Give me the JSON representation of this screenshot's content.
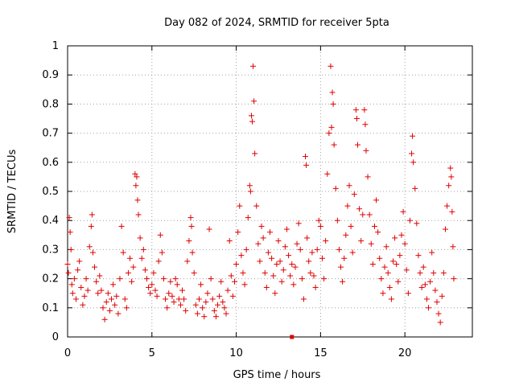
{
  "chart_data": {
    "type": "scatter",
    "title": "Day 082 of 2024, SRMTID for receiver 5pta",
    "xlabel": "GPS time / hours",
    "ylabel": "SRMTID / TECUs",
    "xlim": [
      0,
      24
    ],
    "ylim": [
      0,
      1
    ],
    "xticks": [
      0,
      5,
      10,
      15,
      20
    ],
    "xtick_labels": [
      "0",
      "5",
      "10",
      "15",
      "20"
    ],
    "yticks": [
      0,
      0.1,
      0.2,
      0.3,
      0.4,
      0.5,
      0.6,
      0.7,
      0.8,
      0.9,
      1
    ],
    "ytick_labels": [
      "0",
      "0.1",
      "0.2",
      "0.3",
      "0.4",
      "0.5",
      "0.6",
      "0.7",
      "0.8",
      "0.9",
      "1"
    ],
    "grid": true,
    "marker": "plus",
    "marker_color": "#e00000",
    "series": [
      {
        "name": "SRMTID",
        "points": [
          [
            0.0,
            0.25
          ],
          [
            0.05,
            0.22
          ],
          [
            0.1,
            0.41
          ],
          [
            0.15,
            0.36
          ],
          [
            0.2,
            0.3
          ],
          [
            0.25,
            0.18
          ],
          [
            0.3,
            0.15
          ],
          [
            0.4,
            0.2
          ],
          [
            0.5,
            0.13
          ],
          [
            0.6,
            0.23
          ],
          [
            0.7,
            0.26
          ],
          [
            0.8,
            0.17
          ],
          [
            0.9,
            0.11
          ],
          [
            1.0,
            0.14
          ],
          [
            1.1,
            0.2
          ],
          [
            1.2,
            0.16
          ],
          [
            1.3,
            0.31
          ],
          [
            1.4,
            0.38
          ],
          [
            1.45,
            0.42
          ],
          [
            1.5,
            0.29
          ],
          [
            1.6,
            0.24
          ],
          [
            1.7,
            0.19
          ],
          [
            1.8,
            0.15
          ],
          [
            1.9,
            0.21
          ],
          [
            2.0,
            0.16
          ],
          [
            2.1,
            0.1
          ],
          [
            2.2,
            0.06
          ],
          [
            2.3,
            0.12
          ],
          [
            2.4,
            0.15
          ],
          [
            2.5,
            0.09
          ],
          [
            2.6,
            0.13
          ],
          [
            2.7,
            0.18
          ],
          [
            2.8,
            0.11
          ],
          [
            2.9,
            0.14
          ],
          [
            3.0,
            0.08
          ],
          [
            3.1,
            0.2
          ],
          [
            3.2,
            0.38
          ],
          [
            3.3,
            0.29
          ],
          [
            3.4,
            0.13
          ],
          [
            3.5,
            0.1
          ],
          [
            3.6,
            0.22
          ],
          [
            3.7,
            0.27
          ],
          [
            3.8,
            0.19
          ],
          [
            3.9,
            0.24
          ],
          [
            4.0,
            0.56
          ],
          [
            4.05,
            0.52
          ],
          [
            4.1,
            0.55
          ],
          [
            4.15,
            0.47
          ],
          [
            4.2,
            0.42
          ],
          [
            4.3,
            0.34
          ],
          [
            4.4,
            0.27
          ],
          [
            4.5,
            0.3
          ],
          [
            4.6,
            0.23
          ],
          [
            4.7,
            0.2
          ],
          [
            4.8,
            0.17
          ],
          [
            4.9,
            0.15
          ],
          [
            5.0,
            0.18
          ],
          [
            5.1,
            0.22
          ],
          [
            5.2,
            0.16
          ],
          [
            5.3,
            0.14
          ],
          [
            5.4,
            0.26
          ],
          [
            5.5,
            0.35
          ],
          [
            5.6,
            0.29
          ],
          [
            5.7,
            0.2
          ],
          [
            5.8,
            0.13
          ],
          [
            5.9,
            0.1
          ],
          [
            6.0,
            0.15
          ],
          [
            6.1,
            0.19
          ],
          [
            6.2,
            0.14
          ],
          [
            6.3,
            0.12
          ],
          [
            6.4,
            0.2
          ],
          [
            6.5,
            0.18
          ],
          [
            6.6,
            0.13
          ],
          [
            6.7,
            0.11
          ],
          [
            6.8,
            0.16
          ],
          [
            6.9,
            0.13
          ],
          [
            7.0,
            0.09
          ],
          [
            7.1,
            0.26
          ],
          [
            7.2,
            0.33
          ],
          [
            7.3,
            0.41
          ],
          [
            7.35,
            0.38
          ],
          [
            7.4,
            0.29
          ],
          [
            7.5,
            0.22
          ],
          [
            7.6,
            0.11
          ],
          [
            7.7,
            0.08
          ],
          [
            7.8,
            0.13
          ],
          [
            7.9,
            0.18
          ],
          [
            8.0,
            0.1
          ],
          [
            8.1,
            0.07
          ],
          [
            8.2,
            0.12
          ],
          [
            8.3,
            0.15
          ],
          [
            8.4,
            0.37
          ],
          [
            8.5,
            0.2
          ],
          [
            8.6,
            0.13
          ],
          [
            8.7,
            0.09
          ],
          [
            8.8,
            0.07
          ],
          [
            8.9,
            0.11
          ],
          [
            9.0,
            0.14
          ],
          [
            9.1,
            0.19
          ],
          [
            9.2,
            0.12
          ],
          [
            9.3,
            0.1
          ],
          [
            9.4,
            0.08
          ],
          [
            9.5,
            0.16
          ],
          [
            9.6,
            0.33
          ],
          [
            9.7,
            0.21
          ],
          [
            9.8,
            0.14
          ],
          [
            9.9,
            0.19
          ],
          [
            10.0,
            0.25
          ],
          [
            10.1,
            0.36
          ],
          [
            10.2,
            0.45
          ],
          [
            10.3,
            0.28
          ],
          [
            10.4,
            0.22
          ],
          [
            10.5,
            0.18
          ],
          [
            10.6,
            0.3
          ],
          [
            10.7,
            0.41
          ],
          [
            10.8,
            0.52
          ],
          [
            10.85,
            0.5
          ],
          [
            10.9,
            0.76
          ],
          [
            10.95,
            0.74
          ],
          [
            11.0,
            0.93
          ],
          [
            11.05,
            0.81
          ],
          [
            11.1,
            0.63
          ],
          [
            11.2,
            0.45
          ],
          [
            11.3,
            0.32
          ],
          [
            11.4,
            0.26
          ],
          [
            11.5,
            0.38
          ],
          [
            11.6,
            0.34
          ],
          [
            11.7,
            0.22
          ],
          [
            11.8,
            0.17
          ],
          [
            11.9,
            0.29
          ],
          [
            12.0,
            0.36
          ],
          [
            12.1,
            0.27
          ],
          [
            12.2,
            0.21
          ],
          [
            12.3,
            0.15
          ],
          [
            12.4,
            0.25
          ],
          [
            12.5,
            0.33
          ],
          [
            12.6,
            0.26
          ],
          [
            12.7,
            0.19
          ],
          [
            12.8,
            0.23
          ],
          [
            12.9,
            0.31
          ],
          [
            13.0,
            0.37
          ],
          [
            13.1,
            0.28
          ],
          [
            13.2,
            0.21
          ],
          [
            13.3,
            0.25
          ],
          [
            13.4,
            0.18
          ],
          [
            13.5,
            0.24
          ],
          [
            13.6,
            0.32
          ],
          [
            13.7,
            0.39
          ],
          [
            13.8,
            0.3
          ],
          [
            13.9,
            0.2
          ],
          [
            14.0,
            0.13
          ],
          [
            14.1,
            0.62
          ],
          [
            14.15,
            0.59
          ],
          [
            14.2,
            0.34
          ],
          [
            14.3,
            0.26
          ],
          [
            14.4,
            0.22
          ],
          [
            14.5,
            0.29
          ],
          [
            14.6,
            0.21
          ],
          [
            14.7,
            0.17
          ],
          [
            14.8,
            0.3
          ],
          [
            14.9,
            0.4
          ],
          [
            15.0,
            0.38
          ],
          [
            15.1,
            0.27
          ],
          [
            15.2,
            0.2
          ],
          [
            15.3,
            0.33
          ],
          [
            15.4,
            0.56
          ],
          [
            15.5,
            0.7
          ],
          [
            15.6,
            0.93
          ],
          [
            15.65,
            0.72
          ],
          [
            15.7,
            0.84
          ],
          [
            15.75,
            0.8
          ],
          [
            15.8,
            0.66
          ],
          [
            15.9,
            0.51
          ],
          [
            16.0,
            0.4
          ],
          [
            16.1,
            0.3
          ],
          [
            16.2,
            0.24
          ],
          [
            16.3,
            0.19
          ],
          [
            16.4,
            0.27
          ],
          [
            16.5,
            0.35
          ],
          [
            16.6,
            0.45
          ],
          [
            16.7,
            0.52
          ],
          [
            16.8,
            0.38
          ],
          [
            16.9,
            0.29
          ],
          [
            17.0,
            0.49
          ],
          [
            17.1,
            0.78
          ],
          [
            17.15,
            0.75
          ],
          [
            17.2,
            0.66
          ],
          [
            17.3,
            0.44
          ],
          [
            17.4,
            0.33
          ],
          [
            17.5,
            0.42
          ],
          [
            17.6,
            0.78
          ],
          [
            17.65,
            0.73
          ],
          [
            17.7,
            0.64
          ],
          [
            17.8,
            0.55
          ],
          [
            17.9,
            0.42
          ],
          [
            18.0,
            0.32
          ],
          [
            18.1,
            0.25
          ],
          [
            18.2,
            0.38
          ],
          [
            18.3,
            0.47
          ],
          [
            18.4,
            0.36
          ],
          [
            18.5,
            0.27
          ],
          [
            18.6,
            0.2
          ],
          [
            18.7,
            0.15
          ],
          [
            18.8,
            0.24
          ],
          [
            18.9,
            0.31
          ],
          [
            19.0,
            0.22
          ],
          [
            19.1,
            0.17
          ],
          [
            19.2,
            0.13
          ],
          [
            19.3,
            0.26
          ],
          [
            19.4,
            0.34
          ],
          [
            19.5,
            0.25
          ],
          [
            19.6,
            0.19
          ],
          [
            19.7,
            0.28
          ],
          [
            19.8,
            0.35
          ],
          [
            19.9,
            0.43
          ],
          [
            20.0,
            0.32
          ],
          [
            20.1,
            0.23
          ],
          [
            20.2,
            0.15
          ],
          [
            20.3,
            0.4
          ],
          [
            20.4,
            0.63
          ],
          [
            20.45,
            0.69
          ],
          [
            20.5,
            0.6
          ],
          [
            20.6,
            0.51
          ],
          [
            20.7,
            0.39
          ],
          [
            20.8,
            0.28
          ],
          [
            20.9,
            0.22
          ],
          [
            21.0,
            0.17
          ],
          [
            21.1,
            0.24
          ],
          [
            21.2,
            0.18
          ],
          [
            21.3,
            0.13
          ],
          [
            21.4,
            0.1
          ],
          [
            21.5,
            0.19
          ],
          [
            21.6,
            0.29
          ],
          [
            21.7,
            0.22
          ],
          [
            21.8,
            0.16
          ],
          [
            21.9,
            0.12
          ],
          [
            22.0,
            0.08
          ],
          [
            22.1,
            0.05
          ],
          [
            22.2,
            0.14
          ],
          [
            22.3,
            0.22
          ],
          [
            22.4,
            0.37
          ],
          [
            22.5,
            0.45
          ],
          [
            22.6,
            0.52
          ],
          [
            22.7,
            0.58
          ],
          [
            22.75,
            0.55
          ],
          [
            22.8,
            0.43
          ],
          [
            22.85,
            0.31
          ],
          [
            22.9,
            0.2
          ]
        ]
      }
    ],
    "annotations": [
      {
        "kind": "square-marker",
        "x": 13.3,
        "y": 0
      }
    ]
  }
}
